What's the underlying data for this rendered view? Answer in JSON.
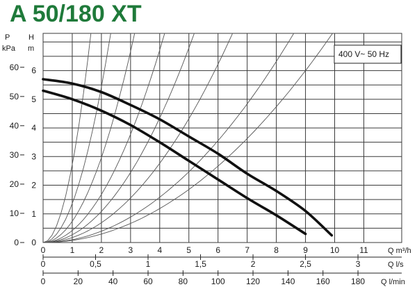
{
  "colors": {
    "title": "#1f7a3a",
    "grid": "#3a3a3a",
    "curve": "#111111",
    "system": "#555555"
  },
  "chart_data": {
    "type": "line",
    "title": "A 50/180 XT",
    "annotation": "400 V~ 50 Hz",
    "grid": true,
    "axes": {
      "left_outer": {
        "label_top": "P",
        "label_bottom": "kPa",
        "ticks": [
          0,
          10,
          20,
          30,
          40,
          50,
          60
        ]
      },
      "left_inner": {
        "label_top": "H",
        "label_bottom": "m",
        "ticks": [
          0,
          1,
          2,
          3,
          4,
          5,
          6
        ],
        "range": [
          0,
          7.3
        ]
      },
      "x_m3h": {
        "label": "Q m³/h",
        "ticks": [
          0,
          1,
          2,
          3,
          4,
          5,
          6,
          7,
          8,
          9,
          10,
          11
        ],
        "range": [
          0,
          12.3
        ]
      },
      "x_ls": {
        "label": "Q l/s",
        "ticks": [
          "0",
          "0,5",
          "1",
          "1,5",
          "2",
          "2,5",
          "3"
        ],
        "values": [
          0,
          0.5,
          1,
          1.5,
          2,
          2.5,
          3
        ]
      },
      "x_lmin": {
        "label": "Q l/min",
        "ticks": [
          0,
          20,
          40,
          60,
          80,
          100,
          120,
          140,
          160,
          180
        ],
        "values": [
          0,
          20,
          40,
          60,
          80,
          100,
          120,
          140,
          160,
          180
        ]
      }
    },
    "series": [
      {
        "x": [
          0,
          1,
          2,
          3,
          4,
          5,
          6,
          7,
          8,
          9,
          9.9
        ],
        "y": [
          5.7,
          5.55,
          5.25,
          4.8,
          4.3,
          3.7,
          3.1,
          2.4,
          1.8,
          1.1,
          0.25
        ]
      },
      {
        "x": [
          0,
          1,
          2,
          3,
          4,
          5,
          6,
          7,
          8,
          9
        ],
        "y": [
          5.3,
          5.0,
          4.6,
          4.1,
          3.5,
          2.85,
          2.2,
          1.55,
          0.95,
          0.3
        ]
      }
    ],
    "system_curves": {
      "heads_at_9": [
        6,
        8,
        14,
        22,
        34,
        60,
        110,
        220
      ]
    }
  }
}
